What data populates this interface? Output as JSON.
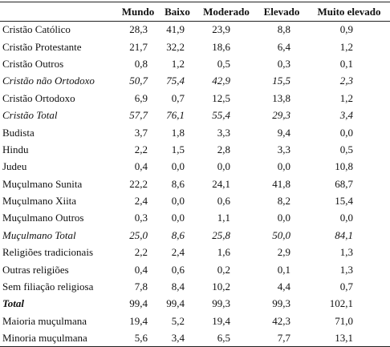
{
  "table": {
    "columns": [
      "Mundo",
      "Baixo",
      "Moderado",
      "Elevado",
      "Muito elevado"
    ],
    "rows": [
      {
        "label": "Cristão Católico",
        "values": [
          "28,3",
          "41,9",
          "23,9",
          "8,8",
          "0,9"
        ],
        "style": "normal"
      },
      {
        "label": "Cristão Protestante",
        "values": [
          "21,7",
          "32,2",
          "18,6",
          "6,4",
          "1,2"
        ],
        "style": "normal"
      },
      {
        "label": "Cristão Outros",
        "values": [
          "0,8",
          "1,2",
          "0,5",
          "0,3",
          "0,1"
        ],
        "style": "normal"
      },
      {
        "label": "Cristão não Ortodoxo",
        "values": [
          "50,7",
          "75,4",
          "42,9",
          "15,5",
          "2,3"
        ],
        "style": "italic"
      },
      {
        "label": "Cristão Ortodoxo",
        "values": [
          "6,9",
          "0,7",
          "12,5",
          "13,8",
          "1,2"
        ],
        "style": "normal"
      },
      {
        "label": "Cristão Total",
        "values": [
          "57,7",
          "76,1",
          "55,4",
          "29,3",
          "3,4"
        ],
        "style": "italic"
      },
      {
        "label": "Budista",
        "values": [
          "3,7",
          "1,8",
          "3,3",
          "9,4",
          "0,0"
        ],
        "style": "normal"
      },
      {
        "label": "Hindu",
        "values": [
          "2,2",
          "1,5",
          "2,8",
          "3,3",
          "0,5"
        ],
        "style": "normal"
      },
      {
        "label": "Judeu",
        "values": [
          "0,4",
          "0,0",
          "0,0",
          "0,0",
          "10,8"
        ],
        "style": "normal"
      },
      {
        "label": "Muçulmano Sunita",
        "values": [
          "22,2",
          "8,6",
          "24,1",
          "41,8",
          "68,7"
        ],
        "style": "normal"
      },
      {
        "label": "Muçulmano Xiita",
        "values": [
          "2,4",
          "0,0",
          "0,6",
          "8,2",
          "15,4"
        ],
        "style": "normal"
      },
      {
        "label": "Muçulmano Outros",
        "values": [
          "0,3",
          "0,0",
          "1,1",
          "0,0",
          "0,0"
        ],
        "style": "normal"
      },
      {
        "label": "Muçulmano Total",
        "values": [
          "25,0",
          "8,6",
          "25,8",
          "50,0",
          "84,1"
        ],
        "style": "italic"
      },
      {
        "label": "Religiões tradicionais",
        "values": [
          "2,2",
          "2,4",
          "1,6",
          "2,9",
          "1,3"
        ],
        "style": "normal"
      },
      {
        "label": "Outras religiões",
        "values": [
          "0,4",
          "0,6",
          "0,2",
          "0,1",
          "1,3"
        ],
        "style": "normal"
      },
      {
        "label": "Sem filiação religiosa",
        "values": [
          "7,8",
          "8,4",
          "10,2",
          "4,4",
          "0,7"
        ],
        "style": "normal"
      },
      {
        "label": "Total",
        "values": [
          "99,4",
          "99,4",
          "99,3",
          "99,3",
          "102,1"
        ],
        "style": "bold-italic"
      },
      {
        "label": "Maioria muçulmana",
        "values": [
          "19,4",
          "5,2",
          "19,4",
          "42,3",
          "71,0"
        ],
        "style": "normal"
      },
      {
        "label": "Minoria muçulmana",
        "values": [
          "5,6",
          "3,4",
          "6,5",
          "7,7",
          "13,1"
        ],
        "style": "normal"
      }
    ]
  }
}
